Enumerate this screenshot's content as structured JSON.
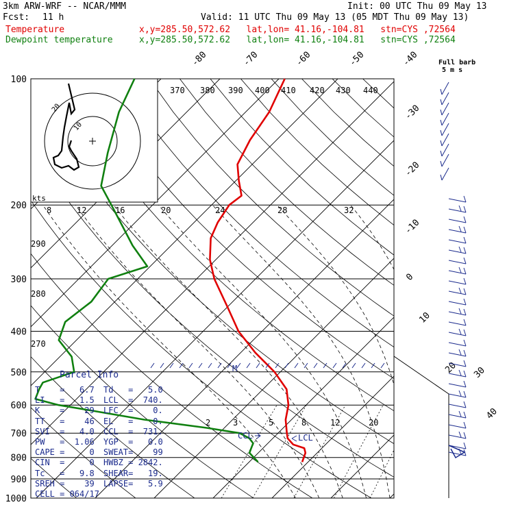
{
  "header": {
    "line1_left": "3km ARW-WRF -- NCAR/MMM",
    "line1_right": "Init: 00 UTC Thu 09 May 13",
    "fcst_label": "Fcst:",
    "fcst_value": "11 h",
    "valid": "Valid: 11 UTC Thu 09 May 13 (05 MDT Thu 09 May 13)",
    "temp_label": "Temperature",
    "temp_info": "x,y=285.50,572.62   lat,lon= 41.16,-104.81   stn=CYS ,72564",
    "dew_label": "Dewpoint temperature",
    "dew_info": "x,y=285.50,572.62   lat,lon= 41.16,-104.81   stn=CYS ,72564",
    "barb_label_1": "Full barb",
    "barb_label_2": "5 m s"
  },
  "colors": {
    "temperature": "#e00000",
    "dewpoint": "#108010",
    "info": "#1a2a8c",
    "grid": "#000000"
  },
  "parcel_info": {
    "title": "Parcel Info",
    "left": [
      [
        "T",
        "6.7"
      ],
      [
        "LI",
        "1.5"
      ],
      [
        "K",
        "29"
      ],
      [
        "TT",
        "46"
      ],
      [
        "SVI",
        "4.0"
      ],
      [
        "PW",
        "1.06"
      ],
      [
        "CAPE",
        "0"
      ],
      [
        "CIN",
        "0"
      ],
      [
        "Tc",
        "9.8"
      ],
      [
        "SREH",
        "39"
      ]
    ],
    "right": [
      [
        "Td",
        "5.0"
      ],
      [
        "LCL",
        "740."
      ],
      [
        "LFC",
        "0."
      ],
      [
        "EL",
        "0."
      ],
      [
        "CCL",
        "731."
      ],
      [
        "YGP",
        "0.0"
      ],
      [
        "SWEAT",
        "99"
      ],
      [
        "HWBZ",
        "2842."
      ],
      [
        "SHEAR",
        "19."
      ],
      [
        "LAPSE",
        "5.9"
      ]
    ],
    "cell": "CELL = 064/17"
  },
  "chart_data": {
    "type": "line",
    "pressure_levels": [
      100,
      200,
      300,
      400,
      500,
      600,
      700,
      800,
      900,
      1000
    ],
    "isotherm_labels": [
      "-80",
      "-70",
      "-60",
      "-50",
      "-40",
      "-30",
      "-20",
      "-10",
      "0",
      "10",
      "20",
      "30",
      "40"
    ],
    "theta_e_labels": [
      "370",
      "380",
      "390",
      "400",
      "410",
      "420",
      "430",
      "440"
    ],
    "mixing_ratio_upper_labels": [
      "8",
      "12",
      "16",
      "20",
      "24",
      "28",
      "32"
    ],
    "mixing_ratio_lower_labels": [
      "2",
      "3",
      "5",
      "8",
      "12",
      "20"
    ],
    "dry_adiabat_labels": [
      "290",
      "280",
      "270"
    ],
    "hodograph_labels": [
      "kts",
      "10",
      "20"
    ],
    "lcl_label": "LCL",
    "ccl_label": "CCL",
    "lcl_marker": "M",
    "series": [
      {
        "name": "Temperature",
        "points": [
          [
            820,
            -1.0
          ],
          [
            800,
            -1.5
          ],
          [
            780,
            -2.0
          ],
          [
            760,
            -3.0
          ],
          [
            745,
            -5.5
          ],
          [
            720,
            -7.5
          ],
          [
            700,
            -8.5
          ],
          [
            650,
            -11.0
          ],
          [
            600,
            -13.0
          ],
          [
            550,
            -16.0
          ],
          [
            500,
            -21.0
          ],
          [
            450,
            -27.5
          ],
          [
            400,
            -34.0
          ],
          [
            350,
            -40.0
          ],
          [
            300,
            -47.0
          ],
          [
            270,
            -51.0
          ],
          [
            240,
            -54.5
          ],
          [
            220,
            -56.0
          ],
          [
            200,
            -57.0
          ],
          [
            190,
            -56.5
          ],
          [
            175,
            -59.5
          ],
          [
            160,
            -62.5
          ],
          [
            140,
            -64.5
          ],
          [
            120,
            -66.0
          ],
          [
            100,
            -69.0
          ]
        ]
      },
      {
        "name": "Dewpoint temperature",
        "points": [
          [
            820,
            -8.5
          ],
          [
            800,
            -10.0
          ],
          [
            780,
            -11.5
          ],
          [
            760,
            -12.0
          ],
          [
            740,
            -12.5
          ],
          [
            720,
            -14.0
          ],
          [
            700,
            -16.5
          ],
          [
            680,
            -23.0
          ],
          [
            650,
            -35.0
          ],
          [
            620,
            -45.0
          ],
          [
            600,
            -52.0
          ],
          [
            580,
            -57.0
          ],
          [
            550,
            -58.0
          ],
          [
            530,
            -58.5
          ],
          [
            500,
            -55.0
          ],
          [
            460,
            -58.0
          ],
          [
            420,
            -63.0
          ],
          [
            380,
            -65.0
          ],
          [
            340,
            -64.0
          ],
          [
            300,
            -65.0
          ],
          [
            280,
            -60.5
          ],
          [
            250,
            -66.5
          ],
          [
            220,
            -72.5
          ],
          [
            200,
            -77.0
          ],
          [
            180,
            -82.0
          ],
          [
            150,
            -86.5
          ],
          [
            120,
            -91.5
          ],
          [
            100,
            -94.5
          ]
        ]
      }
    ],
    "xlabel": "",
    "ylabel": ""
  }
}
